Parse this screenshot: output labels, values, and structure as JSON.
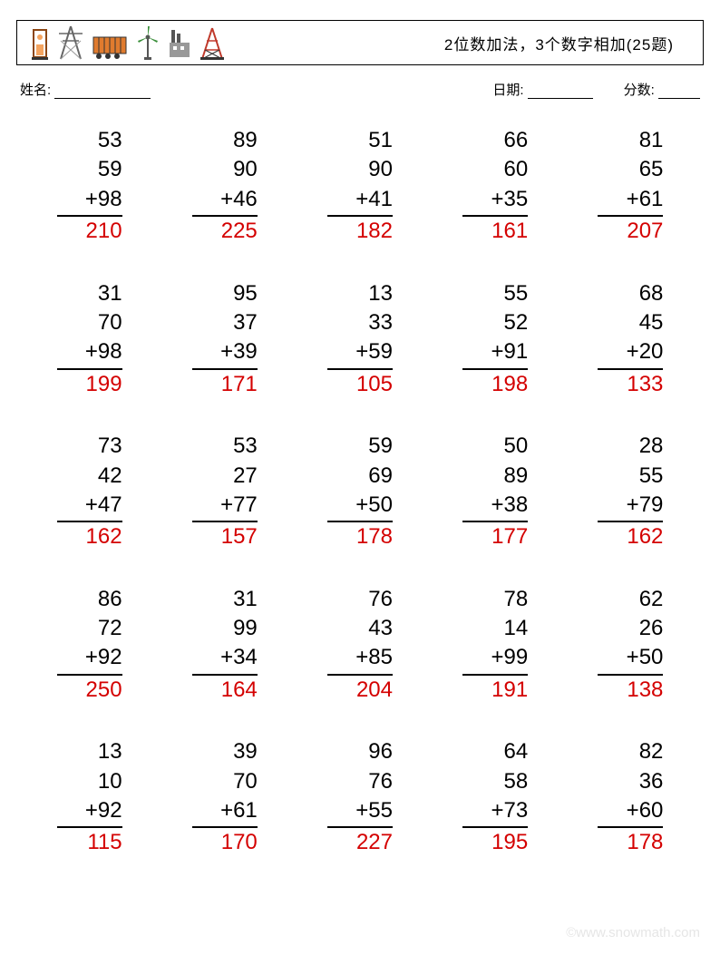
{
  "header": {
    "title": "2位数加法，3个数字相加(25题)"
  },
  "info": {
    "name_label": "姓名:",
    "date_label": "日期:",
    "score_label": "分数:"
  },
  "underline_widths": {
    "name": 106,
    "date": 72,
    "score": 46
  },
  "styling": {
    "font_size_problem": 24,
    "answer_color": "#d40000",
    "text_color": "#000000",
    "background": "#ffffff",
    "border_color": "#000000",
    "watermark_color": "#e6e6e6",
    "columns": 5,
    "rows": 5
  },
  "icons": [
    {
      "name": "oil-pump",
      "colors": {
        "a": "#f4a460",
        "b": "#8b4513",
        "c": "#333"
      }
    },
    {
      "name": "transmission-tower",
      "colors": {
        "a": "#666",
        "b": "#999"
      }
    },
    {
      "name": "cargo-container",
      "colors": {
        "a": "#e07b2e",
        "b": "#333"
      }
    },
    {
      "name": "wind-turbine",
      "colors": {
        "a": "#3a8f3a",
        "b": "#555"
      }
    },
    {
      "name": "factory",
      "colors": {
        "a": "#555",
        "b": "#999"
      }
    },
    {
      "name": "oil-derrick",
      "colors": {
        "a": "#c0392b",
        "b": "#333"
      }
    }
  ],
  "problems": [
    {
      "a": 53,
      "b": 59,
      "c": 98,
      "ans": 210
    },
    {
      "a": 89,
      "b": 90,
      "c": 46,
      "ans": 225
    },
    {
      "a": 51,
      "b": 90,
      "c": 41,
      "ans": 182
    },
    {
      "a": 66,
      "b": 60,
      "c": 35,
      "ans": 161
    },
    {
      "a": 81,
      "b": 65,
      "c": 61,
      "ans": 207
    },
    {
      "a": 31,
      "b": 70,
      "c": 98,
      "ans": 199
    },
    {
      "a": 95,
      "b": 37,
      "c": 39,
      "ans": 171
    },
    {
      "a": 13,
      "b": 33,
      "c": 59,
      "ans": 105
    },
    {
      "a": 55,
      "b": 52,
      "c": 91,
      "ans": 198
    },
    {
      "a": 68,
      "b": 45,
      "c": 20,
      "ans": 133
    },
    {
      "a": 73,
      "b": 42,
      "c": 47,
      "ans": 162
    },
    {
      "a": 53,
      "b": 27,
      "c": 77,
      "ans": 157
    },
    {
      "a": 59,
      "b": 69,
      "c": 50,
      "ans": 178
    },
    {
      "a": 50,
      "b": 89,
      "c": 38,
      "ans": 177
    },
    {
      "a": 28,
      "b": 55,
      "c": 79,
      "ans": 162
    },
    {
      "a": 86,
      "b": 72,
      "c": 92,
      "ans": 250
    },
    {
      "a": 31,
      "b": 99,
      "c": 34,
      "ans": 164
    },
    {
      "a": 76,
      "b": 43,
      "c": 85,
      "ans": 204
    },
    {
      "a": 78,
      "b": 14,
      "c": 99,
      "ans": 191
    },
    {
      "a": 62,
      "b": 26,
      "c": 50,
      "ans": 138
    },
    {
      "a": 13,
      "b": 10,
      "c": 92,
      "ans": 115
    },
    {
      "a": 39,
      "b": 70,
      "c": 61,
      "ans": 170
    },
    {
      "a": 96,
      "b": 76,
      "c": 55,
      "ans": 227
    },
    {
      "a": 64,
      "b": 58,
      "c": 73,
      "ans": 195
    },
    {
      "a": 82,
      "b": 36,
      "c": 60,
      "ans": 178
    }
  ],
  "watermark": "©www.snowmath.com"
}
